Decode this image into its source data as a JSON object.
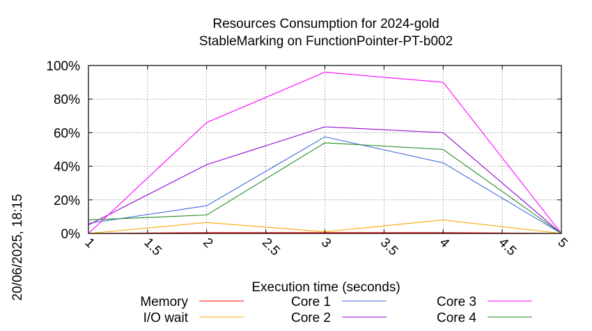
{
  "chart_data": {
    "type": "line",
    "title": "Resources Consumption for 2024-gold",
    "subtitle": "StableMarking on FunctionPointer-PT-b002",
    "xlabel": "Execution time (seconds)",
    "ylabel": "",
    "side_label": "20/06/2025, 18:15",
    "x": [
      1,
      2,
      3,
      4,
      5
    ],
    "xlim": [
      1,
      5
    ],
    "ylim": [
      0,
      100
    ],
    "x_ticks": [
      "1",
      "1.5",
      "2",
      "2.5",
      "3",
      "3.5",
      "4",
      "4.5",
      "5"
    ],
    "x_tick_values": [
      1,
      1.5,
      2,
      2.5,
      3,
      3.5,
      4,
      4.5,
      5
    ],
    "y_ticks": [
      "0%",
      "20%",
      "40%",
      "60%",
      "80%",
      "100%"
    ],
    "y_tick_values": [
      0,
      20,
      40,
      60,
      80,
      100
    ],
    "grid": true,
    "legend_position": "bottom",
    "series": [
      {
        "name": "Memory",
        "color": "#ff0000",
        "values": [
          0,
          0.5,
          0.5,
          0.5,
          0
        ]
      },
      {
        "name": "I/O wait",
        "color": "#ffa500",
        "values": [
          0,
          6.5,
          1,
          8,
          0
        ]
      },
      {
        "name": "Core 1",
        "color": "#4169e1",
        "values": [
          6,
          16.5,
          57.5,
          42,
          0
        ]
      },
      {
        "name": "Core 2",
        "color": "#9400d3",
        "values": [
          5,
          41,
          63.5,
          60,
          0
        ]
      },
      {
        "name": "Core 3",
        "color": "#ff00ff",
        "values": [
          0,
          66,
          96,
          90,
          0
        ]
      },
      {
        "name": "Core 4",
        "color": "#228b22",
        "values": [
          8,
          11,
          54,
          50,
          0
        ]
      }
    ]
  }
}
